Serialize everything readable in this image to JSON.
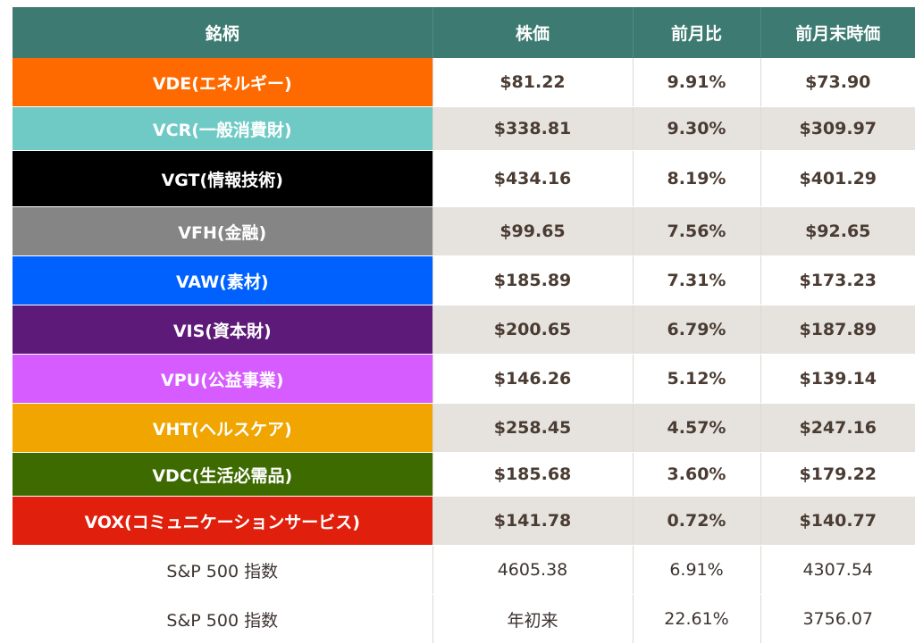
{
  "header": {
    "col_name": "銘柄",
    "col_price": "株価",
    "col_change": "前月比",
    "col_prev": "前月末時価"
  },
  "rows": [
    {
      "name": "VDE(エネルギー)",
      "price": "$81.22",
      "change": "9.91%",
      "prev": "$73.90",
      "color": "#ff6a00"
    },
    {
      "name": "VCR(一般消費財)",
      "price": "$338.81",
      "change": "9.30%",
      "prev": "$309.97",
      "color": "#6fcac6"
    },
    {
      "name": "VGT(情報技術)",
      "price": "$434.16",
      "change": "8.19%",
      "prev": "$401.29",
      "color": "#000000"
    },
    {
      "name": "VFH(金融)",
      "price": "$99.65",
      "change": "7.56%",
      "prev": "$92.65",
      "color": "#858585"
    },
    {
      "name": "VAW(素材)",
      "price": "$185.89",
      "change": "7.31%",
      "prev": "$173.23",
      "color": "#0061ff"
    },
    {
      "name": "VIS(資本財)",
      "price": "$200.65",
      "change": "6.79%",
      "prev": "$187.89",
      "color": "#5d1a78"
    },
    {
      "name": "VPU(公益事業)",
      "price": "$146.26",
      "change": "5.12%",
      "prev": "$139.14",
      "color": "#d65cff"
    },
    {
      "name": "VHT(ヘルスケア)",
      "price": "$258.45",
      "change": "4.57%",
      "prev": "$247.16",
      "color": "#f0a500"
    },
    {
      "name": "VDC(生活必需品)",
      "price": "$185.68",
      "change": "3.60%",
      "prev": "$179.22",
      "color": "#3d6b00"
    },
    {
      "name": "VOX(コミュニケーションサービス)",
      "price": "$141.78",
      "change": "0.72%",
      "prev": "$140.77",
      "color": "#e0200c"
    }
  ],
  "index_rows": [
    {
      "name": "S&P 500 指数",
      "price": "4605.38",
      "change": "6.91%",
      "prev": "4307.54"
    },
    {
      "name": "S&P 500 指数",
      "price": "年初来",
      "change": "22.61%",
      "prev": "3756.07"
    }
  ]
}
